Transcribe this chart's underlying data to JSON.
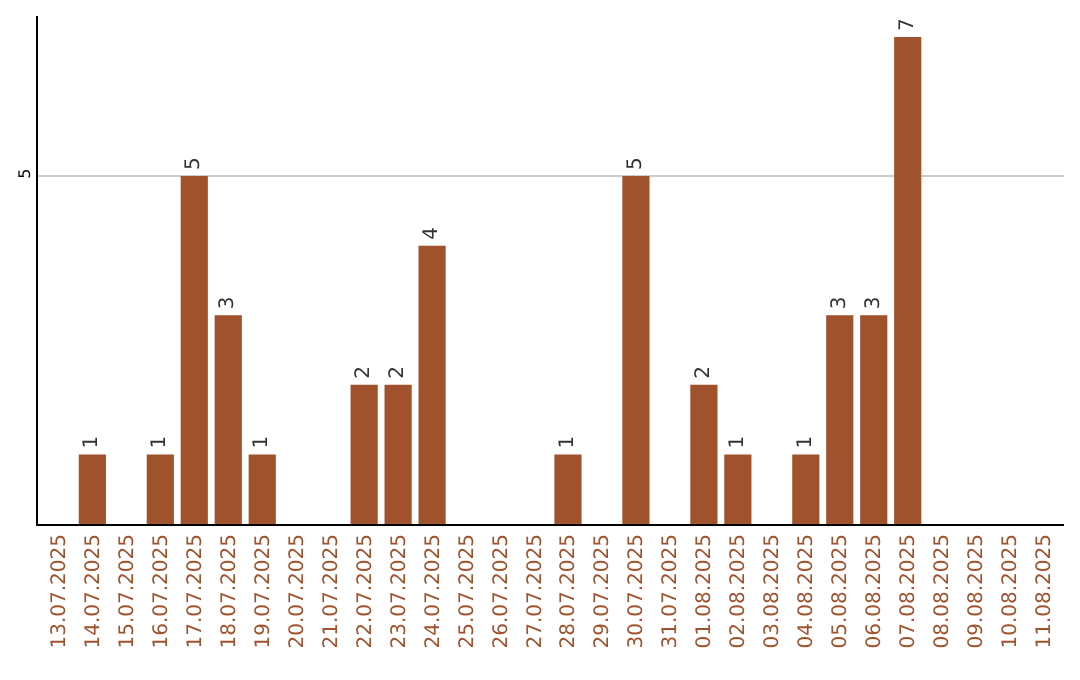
{
  "chart_data": {
    "type": "bar",
    "categories": [
      "13.07.2025",
      "14.07.2025",
      "15.07.2025",
      "16.07.2025",
      "17.07.2025",
      "18.07.2025",
      "19.07.2025",
      "20.07.2025",
      "21.07.2025",
      "22.07.2025",
      "23.07.2025",
      "24.07.2025",
      "25.07.2025",
      "26.07.2025",
      "27.07.2025",
      "28.07.2025",
      "29.07.2025",
      "30.07.2025",
      "31.07.2025",
      "01.08.2025",
      "02.08.2025",
      "03.08.2025",
      "04.08.2025",
      "05.08.2025",
      "06.08.2025",
      "07.08.2025",
      "08.08.2025",
      "09.08.2025",
      "10.08.2025",
      "11.08.2025"
    ],
    "values": [
      0,
      1,
      0,
      1,
      5,
      3,
      1,
      0,
      0,
      2,
      2,
      4,
      0,
      0,
      0,
      1,
      0,
      5,
      0,
      2,
      1,
      0,
      1,
      3,
      3,
      7,
      0,
      0,
      0,
      0
    ],
    "value_labels": [
      null,
      "1",
      null,
      "1",
      "5",
      "3",
      "1",
      null,
      null,
      "2",
      "2",
      "4",
      null,
      null,
      null,
      "1",
      null,
      "5",
      null,
      "2",
      "1",
      null,
      "1",
      "3",
      "3",
      "7",
      null,
      null,
      null,
      null
    ],
    "color": "#a0522d",
    "ylim": [
      0,
      7.3
    ],
    "yticks": [
      5
    ],
    "grid": "y"
  }
}
